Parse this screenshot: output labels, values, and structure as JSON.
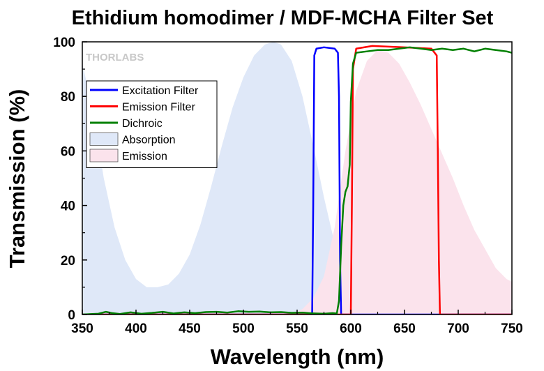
{
  "chart_data": {
    "type": "line",
    "title": "Ethidium homodimer / MDF-MCHA Filter Set",
    "xlabel": "Wavelength (nm)",
    "ylabel": "Transmission (%)",
    "xlim": [
      350,
      750
    ],
    "ylim": [
      0,
      100
    ],
    "x_ticks": [
      "350",
      "400",
      "450",
      "500",
      "550",
      "600",
      "650",
      "700",
      "750"
    ],
    "y_ticks": [
      "0",
      "20",
      "40",
      "60",
      "80",
      "100"
    ],
    "grid": false,
    "legend_position": "top-left",
    "watermark": "THORLABS",
    "series": [
      {
        "name": "Excitation Filter",
        "kind": "line",
        "color": "#0000ff",
        "points": [
          [
            350,
            0
          ],
          [
            564,
            0
          ],
          [
            565,
            40
          ],
          [
            566,
            95
          ],
          [
            568,
            97.5
          ],
          [
            575,
            98
          ],
          [
            585,
            97.5
          ],
          [
            588,
            96
          ],
          [
            589,
            80
          ],
          [
            590,
            20
          ],
          [
            591,
            0
          ],
          [
            750,
            0
          ]
        ]
      },
      {
        "name": "Emission Filter",
        "kind": "line",
        "color": "#ff0000",
        "points": [
          [
            350,
            0
          ],
          [
            600,
            0
          ],
          [
            601,
            40
          ],
          [
            602,
            90
          ],
          [
            605,
            97.5
          ],
          [
            620,
            98.5
          ],
          [
            650,
            98
          ],
          [
            675,
            97.5
          ],
          [
            680,
            95
          ],
          [
            681,
            60
          ],
          [
            682,
            20
          ],
          [
            683,
            0
          ],
          [
            750,
            0
          ]
        ]
      },
      {
        "name": "Dichroic",
        "kind": "line",
        "color": "#008000",
        "points": [
          [
            350,
            0
          ],
          [
            365,
            0.3
          ],
          [
            372,
            1
          ],
          [
            378,
            0.5
          ],
          [
            385,
            0.2
          ],
          [
            395,
            0.8
          ],
          [
            405,
            0.3
          ],
          [
            415,
            0.6
          ],
          [
            425,
            1
          ],
          [
            435,
            0.4
          ],
          [
            445,
            0.8
          ],
          [
            455,
            0.5
          ],
          [
            465,
            0.9
          ],
          [
            475,
            1
          ],
          [
            485,
            0.7
          ],
          [
            495,
            1.2
          ],
          [
            505,
            1
          ],
          [
            515,
            1.1
          ],
          [
            525,
            0.8
          ],
          [
            535,
            0.9
          ],
          [
            545,
            0.6
          ],
          [
            555,
            0.7
          ],
          [
            565,
            0.4
          ],
          [
            575,
            0.3
          ],
          [
            583,
            0.5
          ],
          [
            587,
            0.4
          ],
          [
            589,
            5
          ],
          [
            591,
            25
          ],
          [
            593,
            40
          ],
          [
            595,
            45
          ],
          [
            597,
            47
          ],
          [
            599,
            55
          ],
          [
            600,
            78
          ],
          [
            602,
            92
          ],
          [
            605,
            96
          ],
          [
            615,
            96.5
          ],
          [
            625,
            97
          ],
          [
            635,
            97
          ],
          [
            645,
            97.5
          ],
          [
            655,
            98
          ],
          [
            665,
            97.5
          ],
          [
            675,
            97
          ],
          [
            685,
            97.5
          ],
          [
            695,
            97
          ],
          [
            705,
            97.5
          ],
          [
            715,
            96.5
          ],
          [
            725,
            97.5
          ],
          [
            735,
            97
          ],
          [
            745,
            96.5
          ],
          [
            750,
            96
          ]
        ]
      },
      {
        "name": "Absorption",
        "kind": "area",
        "color": "#dfe8f8",
        "points": [
          [
            350,
            92
          ],
          [
            360,
            75
          ],
          [
            370,
            50
          ],
          [
            380,
            32
          ],
          [
            390,
            20
          ],
          [
            400,
            13
          ],
          [
            410,
            10
          ],
          [
            420,
            10
          ],
          [
            430,
            11
          ],
          [
            440,
            15
          ],
          [
            450,
            22
          ],
          [
            460,
            33
          ],
          [
            470,
            47
          ],
          [
            480,
            62
          ],
          [
            490,
            76
          ],
          [
            500,
            87
          ],
          [
            510,
            95
          ],
          [
            520,
            99
          ],
          [
            528,
            100
          ],
          [
            535,
            99
          ],
          [
            545,
            93
          ],
          [
            555,
            80
          ],
          [
            565,
            62
          ],
          [
            575,
            43
          ],
          [
            585,
            26
          ],
          [
            595,
            14
          ],
          [
            605,
            6
          ],
          [
            615,
            2
          ],
          [
            625,
            0.5
          ],
          [
            640,
            0
          ],
          [
            750,
            0
          ]
        ]
      },
      {
        "name": "Emission",
        "kind": "area",
        "color": "#fbe3ec",
        "points": [
          [
            350,
            0
          ],
          [
            545,
            0
          ],
          [
            555,
            2
          ],
          [
            565,
            6
          ],
          [
            575,
            14
          ],
          [
            585,
            32
          ],
          [
            595,
            60
          ],
          [
            605,
            82
          ],
          [
            615,
            93
          ],
          [
            625,
            97
          ],
          [
            635,
            96
          ],
          [
            645,
            92
          ],
          [
            655,
            85
          ],
          [
            665,
            77
          ],
          [
            675,
            68
          ],
          [
            685,
            59
          ],
          [
            695,
            50
          ],
          [
            705,
            40
          ],
          [
            715,
            31
          ],
          [
            725,
            24
          ],
          [
            735,
            17
          ],
          [
            745,
            13
          ],
          [
            750,
            12
          ]
        ]
      }
    ]
  }
}
